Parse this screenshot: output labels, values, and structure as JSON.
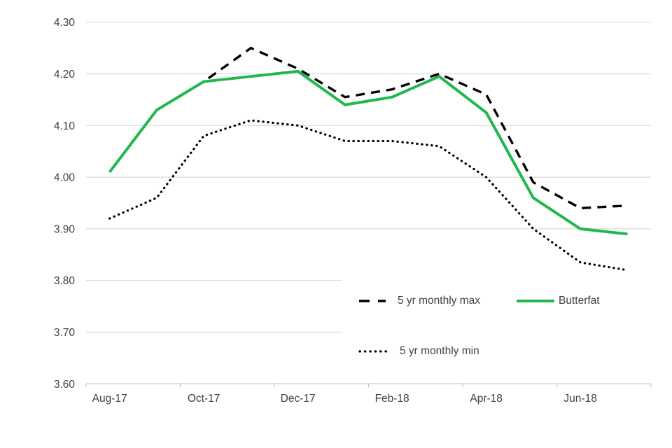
{
  "chart_data": {
    "type": "line",
    "categories": [
      "Aug-17",
      "Sep-17",
      "Oct-17",
      "Nov-17",
      "Dec-17",
      "Jan-18",
      "Feb-18",
      "Mar-18",
      "Apr-18",
      "May-18",
      "Jun-18",
      "Jul-18"
    ],
    "x_axis_tick_labels": [
      "Aug-17",
      "Oct-17",
      "Dec-17",
      "Feb-18",
      "Apr-18",
      "Jun-18"
    ],
    "series": [
      {
        "name": "5 yr monthly max",
        "style": "dashed",
        "color": "#000000",
        "values": [
          4.01,
          4.13,
          4.185,
          4.25,
          4.21,
          4.155,
          4.17,
          4.2,
          4.16,
          3.99,
          3.94,
          3.945
        ]
      },
      {
        "name": "Butterfat",
        "style": "solid",
        "color": "#20B84E",
        "values": [
          4.01,
          4.13,
          4.185,
          4.195,
          4.205,
          4.14,
          4.155,
          4.195,
          4.125,
          3.96,
          3.9,
          3.89
        ]
      },
      {
        "name": "5 yr monthly min",
        "style": "dotted",
        "color": "#000000",
        "values": [
          3.92,
          3.96,
          4.08,
          4.11,
          4.1,
          4.07,
          4.07,
          4.06,
          4.0,
          3.9,
          3.835,
          3.82
        ]
      }
    ],
    "ylim": [
      3.6,
      4.3
    ],
    "y_tick_step": 0.1,
    "y_tick_labels": [
      "3.60",
      "3.70",
      "3.80",
      "3.90",
      "4.00",
      "4.10",
      "4.20",
      "4.30"
    ],
    "grid": "horizontal",
    "legend_position": "overlay-bottom-right"
  },
  "legend": {
    "items": [
      {
        "label": "5 yr monthly max"
      },
      {
        "label": "Butterfat"
      },
      {
        "label": "5 yr monthly min"
      }
    ]
  },
  "colors": {
    "butterfat_green": "#20B84E",
    "series_black": "#000000",
    "gridline": "#D9D9D9",
    "axis_line": "#C0C0C0",
    "label_text": "#404040",
    "legend_background": "#FFFFFF"
  }
}
